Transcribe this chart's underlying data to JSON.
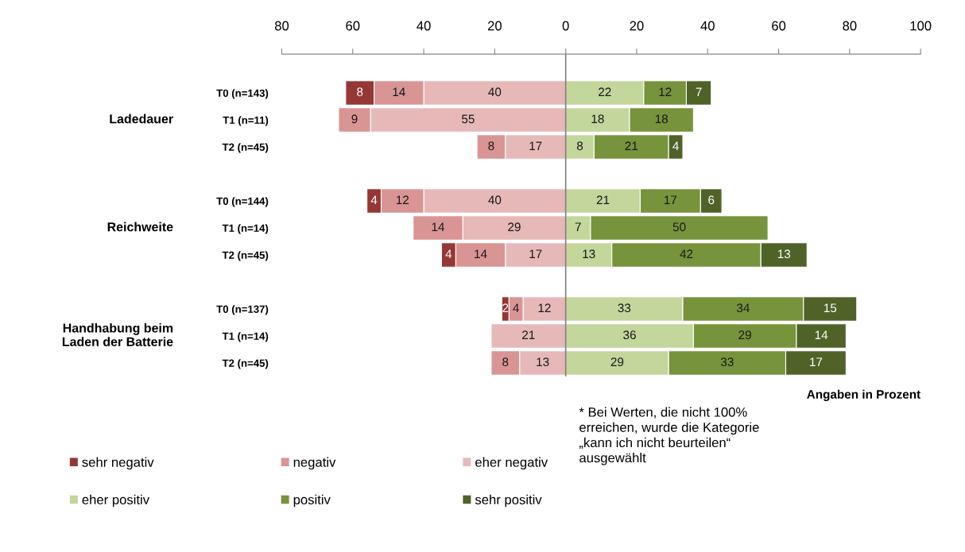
{
  "chart_data": {
    "type": "bar",
    "orientation": "horizontal",
    "categories": [
      "T0 (n=143)",
      "T1 (n=11)",
      "T2 (n=45)",
      null,
      "T0 (n=144)",
      "T1 (n=14)",
      "T2 (n=45)",
      null,
      "T0 (n=137)",
      "T1 (n=14)",
      "T2 (n=45)"
    ],
    "series": [
      {
        "name": "eher negativ",
        "color": "#e6b9b8",
        "values": [
          40,
          55,
          17,
          null,
          40,
          29,
          17,
          null,
          12,
          21,
          13
        ],
        "base": [
          -40,
          -55,
          -17,
          null,
          -40,
          -29,
          -17,
          null,
          -12,
          -21,
          -13
        ]
      },
      {
        "name": "negativ",
        "color": "#d99594",
        "values": [
          14,
          9,
          8,
          null,
          12,
          14,
          14,
          null,
          4,
          null,
          8
        ],
        "base": [
          -54,
          -64,
          -25,
          null,
          -52,
          -43,
          -31,
          null,
          -16,
          null,
          -21
        ]
      },
      {
        "name": "sehr negativ",
        "color": "#953735",
        "values": [
          8,
          null,
          null,
          null,
          4,
          null,
          4,
          null,
          2,
          null,
          null
        ],
        "base": [
          -62,
          null,
          null,
          null,
          -56,
          null,
          -35,
          null,
          -18,
          null,
          null
        ]
      },
      {
        "name": "eher positiv",
        "color": "#c3d69b",
        "values": [
          22,
          18,
          8,
          null,
          21,
          7,
          13,
          null,
          33,
          36,
          29
        ],
        "base": [
          0,
          0,
          0,
          null,
          0,
          0,
          0,
          null,
          0,
          0,
          0
        ]
      },
      {
        "name": "positiv",
        "color": "#77933c",
        "values": [
          12,
          18,
          21,
          null,
          17,
          50,
          42,
          null,
          34,
          29,
          33
        ],
        "base": [
          22,
          18,
          8,
          null,
          21,
          7,
          13,
          null,
          33,
          36,
          29
        ]
      },
      {
        "name": "sehr positiv",
        "color": "#4f6228",
        "values": [
          7,
          null,
          4,
          null,
          6,
          null,
          13,
          null,
          15,
          14,
          17
        ],
        "base": [
          34,
          null,
          29,
          null,
          38,
          null,
          55,
          null,
          67,
          65,
          62
        ]
      }
    ],
    "data_labels": true,
    "xlim": [
      -80,
      100
    ],
    "xticks": [
      {
        "value": -80,
        "label": "80"
      },
      {
        "value": -60,
        "label": "60"
      },
      {
        "value": -40,
        "label": "40"
      },
      {
        "value": -20,
        "label": "20"
      },
      0,
      20,
      40,
      60,
      80,
      100
    ],
    "ref_lines": [
      {
        "axis": "x",
        "value": 0,
        "color": "#808080"
      }
    ],
    "xlabel": "Angaben in Prozent",
    "annotations": [
      "Ladedauer",
      "Reichweite",
      "Handhabung beim\nLaden der Batterie",
      "* Bei Werten, die nicht 100%\nerreichen, wurde die Kategorie\n„kann ich nicht beurteilen“\nausgewählt"
    ],
    "legend": "bottom"
  }
}
